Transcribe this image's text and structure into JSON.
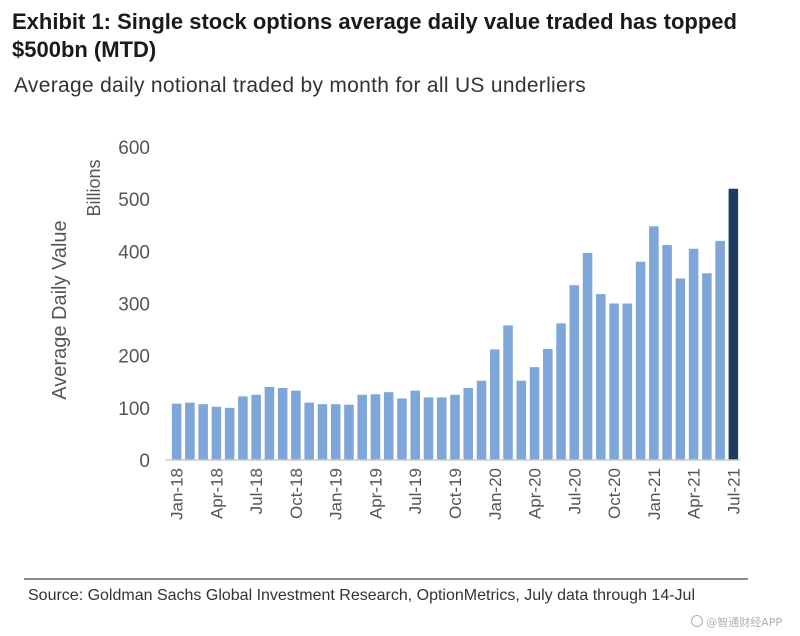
{
  "title": "Exhibit 1: Single stock options average daily value traded has topped $500bn (MTD)",
  "subtitle": "Average daily notional traded by month for all US underliers",
  "source": "Source: Goldman Sachs Global Investment Research, OptionMetrics, July data through 14-Jul",
  "watermark": "@智通财经APP",
  "colors": {
    "bar": "#7ea6d8",
    "highlight": "#1f3a60",
    "axis": "#c8c8c8",
    "text": "#555555"
  },
  "chart_data": {
    "type": "bar",
    "ylabel": "Average Daily Value",
    "yunit": "Billions",
    "ylim": [
      0,
      600
    ],
    "yticks": [
      0,
      100,
      200,
      300,
      400,
      500,
      600
    ],
    "grid": false,
    "categories": [
      "Jan-18",
      "Feb-18",
      "Mar-18",
      "Apr-18",
      "May-18",
      "Jun-18",
      "Jul-18",
      "Aug-18",
      "Sep-18",
      "Oct-18",
      "Nov-18",
      "Dec-18",
      "Jan-19",
      "Feb-19",
      "Mar-19",
      "Apr-19",
      "May-19",
      "Jun-19",
      "Jul-19",
      "Aug-19",
      "Sep-19",
      "Oct-19",
      "Nov-19",
      "Dec-19",
      "Jan-20",
      "Feb-20",
      "Mar-20",
      "Apr-20",
      "May-20",
      "Jun-20",
      "Jul-20",
      "Aug-20",
      "Sep-20",
      "Oct-20",
      "Nov-20",
      "Dec-20",
      "Jan-21",
      "Feb-21",
      "Mar-21",
      "Apr-21",
      "May-21",
      "Jun-21",
      "Jul-21"
    ],
    "xtick_labels": [
      "Jan-18",
      "Apr-18",
      "Jul-18",
      "Oct-18",
      "Jan-19",
      "Apr-19",
      "Jul-19",
      "Oct-19",
      "Jan-20",
      "Apr-20",
      "Jul-20",
      "Oct-20",
      "Jan-21",
      "Apr-21",
      "Jul-21"
    ],
    "values": [
      108,
      110,
      107,
      102,
      100,
      122,
      125,
      140,
      138,
      133,
      110,
      107,
      107,
      106,
      125,
      126,
      130,
      118,
      133,
      120,
      120,
      125,
      138,
      152,
      212,
      258,
      152,
      178,
      213,
      262,
      335,
      397,
      318,
      300,
      300,
      380,
      448,
      412,
      348,
      405,
      358,
      420,
      520
    ],
    "highlight_index": 42
  }
}
